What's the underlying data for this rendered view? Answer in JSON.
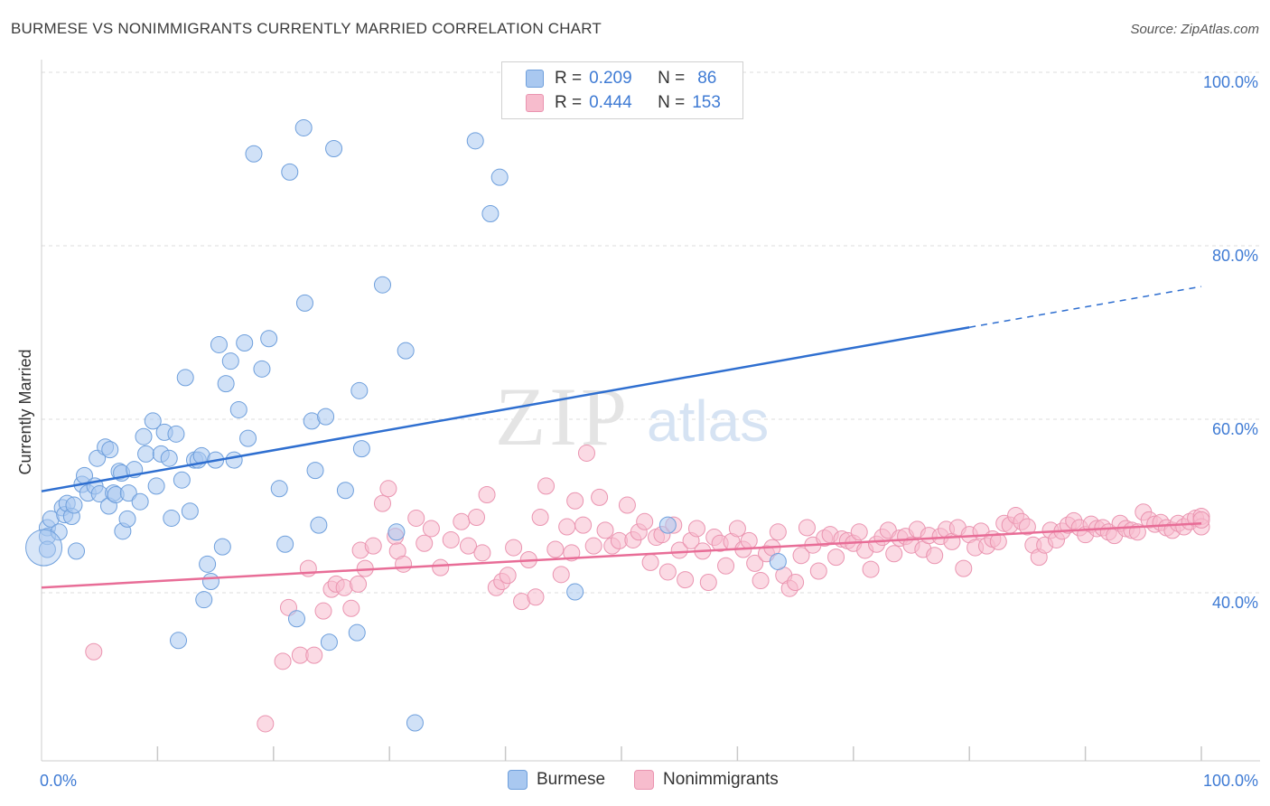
{
  "title": "BURMESE VS NONIMMIGRANTS CURRENTLY MARRIED CORRELATION CHART",
  "source": "Source: ZipAtlas.com",
  "watermark": {
    "zip": "ZIP",
    "atlas": "atlas"
  },
  "legend_top": [
    {
      "r_label": "R =",
      "r_value": "0.209",
      "n_label": "N =",
      "n_value": "86",
      "color": "#a9c8f0",
      "stroke": "#6e9fdc"
    },
    {
      "r_label": "R =",
      "r_value": "0.444",
      "n_label": "N =",
      "n_value": "153",
      "color": "#f7bccd",
      "stroke": "#ea94b0"
    }
  ],
  "legend_bottom": [
    {
      "label": "Burmese",
      "color": "#a9c8f0",
      "stroke": "#6e9fdc"
    },
    {
      "label": "Nonimmigrants",
      "color": "#f7bccd",
      "stroke": "#ea94b0"
    }
  ],
  "chart_data": {
    "type": "scatter",
    "title": "BURMESE VS NONIMMIGRANTS CURRENTLY MARRIED CORRELATION CHART",
    "xlabel": "",
    "ylabel": "Currently Married",
    "xlim": [
      0,
      100
    ],
    "ylim": [
      20,
      100
    ],
    "x_tick_labels": [
      "0.0%",
      "100.0%"
    ],
    "y_tick_values": [
      40,
      60,
      80,
      100
    ],
    "y_tick_labels": [
      "40.0%",
      "60.0%",
      "80.0%",
      "100.0%"
    ],
    "grid": true,
    "legend_position": "top-center",
    "series": [
      {
        "name": "Burmese",
        "color": "#a9c8f0",
        "stroke": "#6e9fdc",
        "line_color": "#2f6fd0",
        "trend": {
          "x0": 0,
          "y0": 51.7,
          "x1": 80,
          "y1": 70.6,
          "dash_to_x": 100,
          "dash_to_y": 75.3
        },
        "points": [
          [
            0.5,
            47.5
          ],
          [
            0.5,
            46.5
          ],
          [
            0.5,
            45.0
          ],
          [
            0.8,
            48.5
          ],
          [
            1.5,
            47.0
          ],
          [
            1.8,
            49.8
          ],
          [
            2.0,
            49.0
          ],
          [
            2.2,
            50.3
          ],
          [
            2.6,
            48.8
          ],
          [
            2.8,
            50.1
          ],
          [
            3.0,
            44.8
          ],
          [
            3.5,
            52.5
          ],
          [
            3.7,
            53.5
          ],
          [
            4.0,
            51.5
          ],
          [
            4.6,
            52.3
          ],
          [
            4.8,
            55.5
          ],
          [
            5.0,
            51.4
          ],
          [
            5.5,
            56.8
          ],
          [
            5.8,
            50.0
          ],
          [
            5.9,
            56.5
          ],
          [
            6.2,
            51.5
          ],
          [
            6.4,
            51.3
          ],
          [
            6.7,
            54.0
          ],
          [
            6.9,
            53.8
          ],
          [
            7.0,
            47.1
          ],
          [
            7.4,
            48.5
          ],
          [
            7.5,
            51.5
          ],
          [
            8.0,
            54.2
          ],
          [
            8.5,
            50.5
          ],
          [
            8.8,
            58.0
          ],
          [
            9.0,
            56.0
          ],
          [
            9.6,
            59.8
          ],
          [
            9.9,
            52.3
          ],
          [
            10.3,
            56.0
          ],
          [
            10.6,
            58.5
          ],
          [
            11.0,
            55.5
          ],
          [
            11.2,
            48.6
          ],
          [
            11.6,
            58.3
          ],
          [
            11.8,
            34.5
          ],
          [
            12.1,
            53.0
          ],
          [
            12.4,
            64.8
          ],
          [
            12.8,
            49.4
          ],
          [
            13.2,
            55.3
          ],
          [
            13.5,
            55.3
          ],
          [
            13.8,
            55.8
          ],
          [
            14.0,
            39.2
          ],
          [
            14.3,
            43.3
          ],
          [
            14.6,
            41.3
          ],
          [
            15.0,
            55.3
          ],
          [
            15.3,
            68.6
          ],
          [
            15.6,
            45.3
          ],
          [
            15.9,
            64.1
          ],
          [
            16.3,
            66.7
          ],
          [
            16.6,
            55.3
          ],
          [
            17.0,
            61.1
          ],
          [
            17.5,
            68.8
          ],
          [
            17.8,
            57.8
          ],
          [
            18.3,
            90.6
          ],
          [
            19.0,
            65.8
          ],
          [
            19.6,
            69.3
          ],
          [
            20.5,
            52.0
          ],
          [
            21.0,
            45.6
          ],
          [
            21.4,
            88.5
          ],
          [
            22.0,
            37.0
          ],
          [
            22.6,
            93.6
          ],
          [
            22.7,
            73.4
          ],
          [
            23.3,
            59.8
          ],
          [
            23.6,
            54.1
          ],
          [
            23.9,
            47.8
          ],
          [
            24.5,
            60.3
          ],
          [
            24.8,
            34.3
          ],
          [
            25.2,
            91.2
          ],
          [
            26.2,
            51.8
          ],
          [
            27.2,
            35.4
          ],
          [
            27.4,
            63.3
          ],
          [
            27.6,
            56.6
          ],
          [
            29.4,
            75.5
          ],
          [
            30.6,
            47.0
          ],
          [
            31.4,
            67.9
          ],
          [
            32.2,
            25.0
          ],
          [
            37.4,
            92.1
          ],
          [
            38.7,
            83.7
          ],
          [
            39.5,
            87.9
          ],
          [
            46.0,
            40.1
          ],
          [
            54.0,
            47.8
          ],
          [
            63.5,
            43.6
          ]
        ]
      },
      {
        "name": "Nonimmigrants",
        "color": "#f7bccd",
        "stroke": "#ea94b0",
        "line_color": "#e86d97",
        "trend": {
          "x0": 0,
          "y0": 40.6,
          "x1": 100,
          "y1": 48.0
        },
        "points": [
          [
            4.5,
            33.2
          ],
          [
            19.3,
            24.9
          ],
          [
            20.8,
            32.1
          ],
          [
            21.3,
            38.3
          ],
          [
            22.3,
            32.8
          ],
          [
            23.0,
            42.8
          ],
          [
            23.5,
            32.8
          ],
          [
            24.3,
            37.9
          ],
          [
            25.0,
            40.4
          ],
          [
            25.4,
            41.0
          ],
          [
            26.1,
            40.6
          ],
          [
            26.7,
            38.2
          ],
          [
            27.3,
            41.0
          ],
          [
            27.5,
            44.9
          ],
          [
            27.9,
            42.8
          ],
          [
            28.6,
            45.4
          ],
          [
            29.4,
            50.3
          ],
          [
            29.9,
            52.0
          ],
          [
            30.5,
            46.5
          ],
          [
            30.7,
            44.8
          ],
          [
            31.2,
            43.3
          ],
          [
            32.3,
            48.6
          ],
          [
            33.0,
            45.7
          ],
          [
            33.6,
            47.4
          ],
          [
            34.4,
            42.9
          ],
          [
            35.3,
            46.1
          ],
          [
            36.2,
            48.2
          ],
          [
            36.8,
            45.4
          ],
          [
            37.5,
            48.7
          ],
          [
            38.0,
            44.6
          ],
          [
            38.4,
            51.3
          ],
          [
            39.2,
            40.6
          ],
          [
            39.7,
            41.3
          ],
          [
            40.2,
            42.0
          ],
          [
            40.7,
            45.2
          ],
          [
            41.4,
            39.0
          ],
          [
            42.0,
            43.8
          ],
          [
            42.6,
            39.5
          ],
          [
            43.0,
            48.7
          ],
          [
            43.5,
            52.3
          ],
          [
            44.3,
            45.0
          ],
          [
            44.8,
            42.1
          ],
          [
            45.3,
            47.6
          ],
          [
            45.7,
            44.6
          ],
          [
            46.0,
            50.6
          ],
          [
            46.7,
            47.8
          ],
          [
            47.0,
            56.1
          ],
          [
            47.6,
            45.4
          ],
          [
            48.1,
            51.0
          ],
          [
            48.6,
            47.2
          ],
          [
            49.2,
            45.4
          ],
          [
            49.8,
            46.0
          ],
          [
            50.5,
            50.1
          ],
          [
            51.0,
            46.1
          ],
          [
            51.5,
            47.0
          ],
          [
            52.0,
            48.2
          ],
          [
            52.5,
            43.5
          ],
          [
            53.0,
            46.4
          ],
          [
            53.5,
            46.7
          ],
          [
            54.0,
            42.4
          ],
          [
            54.5,
            47.8
          ],
          [
            55.0,
            44.9
          ],
          [
            55.5,
            41.5
          ],
          [
            56.0,
            46.0
          ],
          [
            56.5,
            47.4
          ],
          [
            57.0,
            44.8
          ],
          [
            57.5,
            41.2
          ],
          [
            58.0,
            46.4
          ],
          [
            58.5,
            45.7
          ],
          [
            59.0,
            43.1
          ],
          [
            59.5,
            45.9
          ],
          [
            60.0,
            47.4
          ],
          [
            60.5,
            45.0
          ],
          [
            61.0,
            46.0
          ],
          [
            61.5,
            43.4
          ],
          [
            62.0,
            41.4
          ],
          [
            62.5,
            44.5
          ],
          [
            63.0,
            45.2
          ],
          [
            63.5,
            47.0
          ],
          [
            64.0,
            42.0
          ],
          [
            64.5,
            40.5
          ],
          [
            65.0,
            41.2
          ],
          [
            65.5,
            44.3
          ],
          [
            66.0,
            47.5
          ],
          [
            66.5,
            45.5
          ],
          [
            67.0,
            42.5
          ],
          [
            67.5,
            46.3
          ],
          [
            68.0,
            46.7
          ],
          [
            68.5,
            44.1
          ],
          [
            69.0,
            46.2
          ],
          [
            69.5,
            46.0
          ],
          [
            70.0,
            45.7
          ],
          [
            70.5,
            47.0
          ],
          [
            71.0,
            44.9
          ],
          [
            71.5,
            42.7
          ],
          [
            72.0,
            45.6
          ],
          [
            72.5,
            46.4
          ],
          [
            73.0,
            47.2
          ],
          [
            73.5,
            44.5
          ],
          [
            74.0,
            46.3
          ],
          [
            74.5,
            46.5
          ],
          [
            75.0,
            45.5
          ],
          [
            75.5,
            47.3
          ],
          [
            76.0,
            45.0
          ],
          [
            76.5,
            46.6
          ],
          [
            77.0,
            44.3
          ],
          [
            77.5,
            46.5
          ],
          [
            78.0,
            47.3
          ],
          [
            78.5,
            45.9
          ],
          [
            79.0,
            47.5
          ],
          [
            79.5,
            42.8
          ],
          [
            80.0,
            46.7
          ],
          [
            80.5,
            45.2
          ],
          [
            81.0,
            47.1
          ],
          [
            81.5,
            45.4
          ],
          [
            82.0,
            46.2
          ],
          [
            82.5,
            45.9
          ],
          [
            83.0,
            48.0
          ],
          [
            83.5,
            47.8
          ],
          [
            84.0,
            48.9
          ],
          [
            84.5,
            48.2
          ],
          [
            85.0,
            47.6
          ],
          [
            85.5,
            45.5
          ],
          [
            86.0,
            44.1
          ],
          [
            86.5,
            45.5
          ],
          [
            87.0,
            47.2
          ],
          [
            87.5,
            46.1
          ],
          [
            88.0,
            47.1
          ],
          [
            88.5,
            47.8
          ],
          [
            89.0,
            48.3
          ],
          [
            89.5,
            47.5
          ],
          [
            90.0,
            46.7
          ],
          [
            90.5,
            47.9
          ],
          [
            91.0,
            47.4
          ],
          [
            91.5,
            47.5
          ],
          [
            92.0,
            47.0
          ],
          [
            92.5,
            46.6
          ],
          [
            93.0,
            48.0
          ],
          [
            93.5,
            47.4
          ],
          [
            94.0,
            47.2
          ],
          [
            94.5,
            47.0
          ],
          [
            95.0,
            49.3
          ],
          [
            95.5,
            48.4
          ],
          [
            96.0,
            47.9
          ],
          [
            96.5,
            48.1
          ],
          [
            97.0,
            47.5
          ],
          [
            97.5,
            47.2
          ],
          [
            98.0,
            48.0
          ],
          [
            98.5,
            47.6
          ],
          [
            99.0,
            48.2
          ],
          [
            99.5,
            48.6
          ],
          [
            100.0,
            48.8
          ],
          [
            100.5,
            47.6
          ],
          [
            101.0,
            48.4
          ]
        ]
      }
    ]
  }
}
